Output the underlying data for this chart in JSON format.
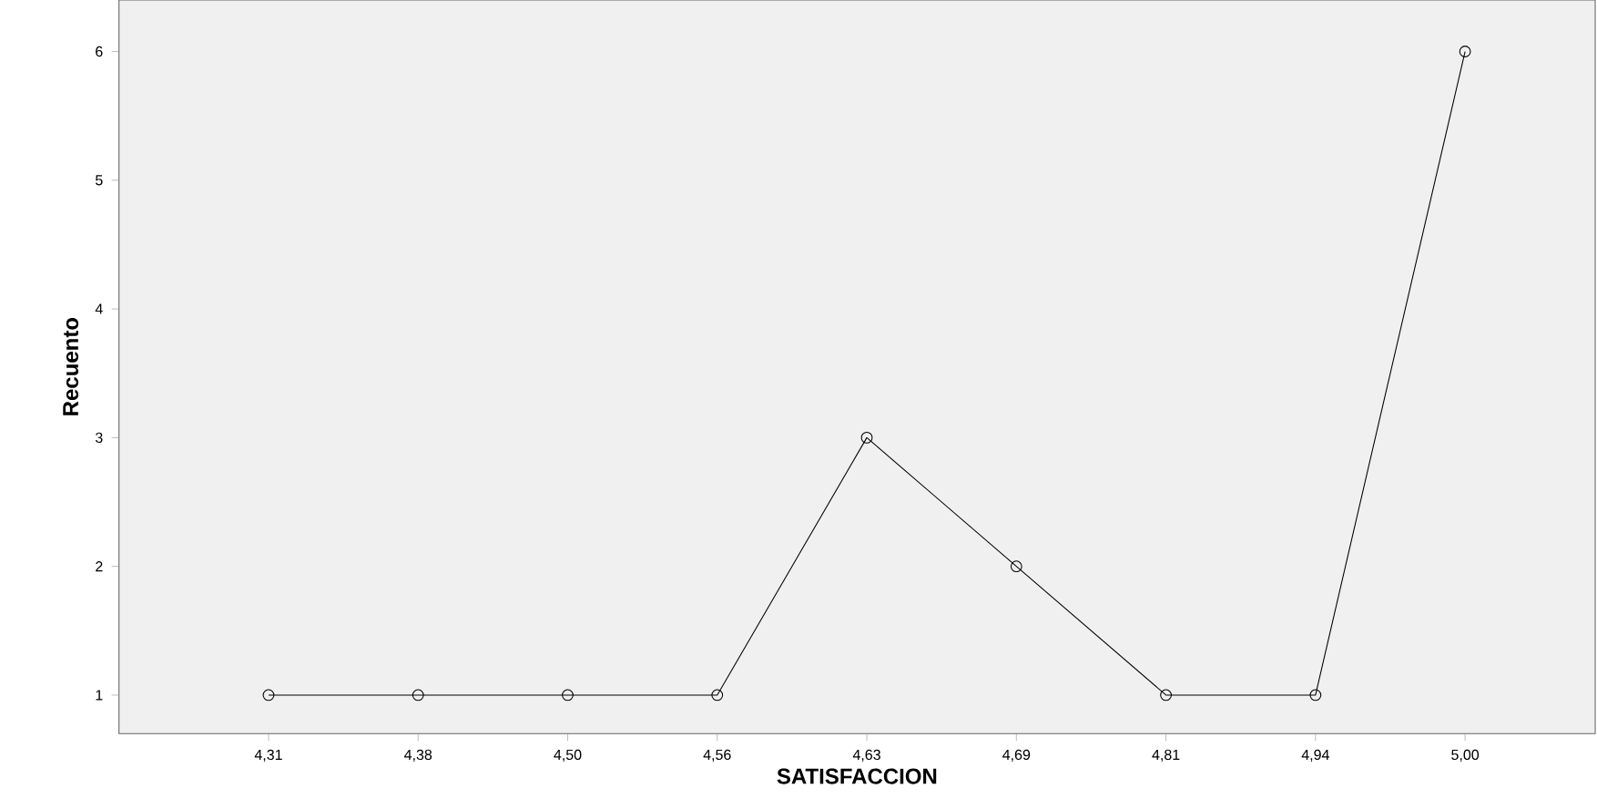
{
  "chart_data": {
    "type": "line",
    "xlabel": "SATISFACCION",
    "ylabel": "Recuento",
    "categories": [
      "4,31",
      "4,38",
      "4,50",
      "4,56",
      "4,63",
      "4,69",
      "4,81",
      "4,94",
      "5,00"
    ],
    "series": [
      {
        "color": "#000000",
        "values": [
          1,
          1,
          1,
          1,
          3,
          2,
          1,
          1,
          6
        ]
      }
    ],
    "ylim": [
      0.7,
      6.4
    ],
    "yticks": [
      1,
      2,
      3,
      4,
      5,
      6
    ],
    "marker": "circle",
    "line_style": "solid",
    "grid": false
  }
}
